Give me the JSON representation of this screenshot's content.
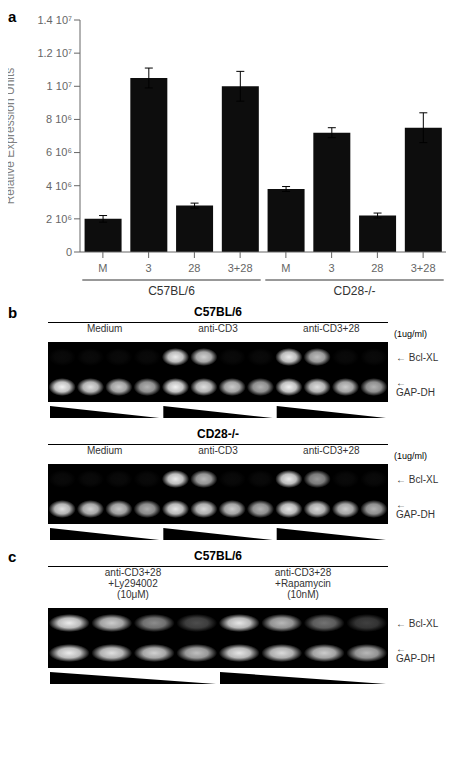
{
  "chart_data": [
    {
      "type": "bar",
      "panel_label": "a",
      "categories": [
        "M",
        "3",
        "28",
        "3+28",
        "M",
        "3",
        "28",
        "3+28"
      ],
      "groups": [
        "C57BL/6",
        "CD28-/-"
      ],
      "values": [
        2000000,
        10500000,
        2800000,
        10000000,
        3800000,
        7200000,
        2200000,
        7500000
      ],
      "errors": [
        200000,
        600000,
        150000,
        900000,
        150000,
        300000,
        150000,
        900000
      ],
      "color": "#0d0d0d",
      "ylabel": "Relative Expression Units",
      "ylim": [
        0,
        14000000
      ],
      "yticks": [
        0,
        {
          "value": 2000000,
          "label": "2 10⁶"
        },
        {
          "value": 4000000,
          "label": "4 10⁶"
        },
        {
          "value": 6000000,
          "label": "6 10⁶"
        },
        {
          "value": 8000000,
          "label": "8 10⁶"
        },
        {
          "value": 10000000,
          "label": "1 10⁷"
        },
        {
          "value": 12000000,
          "label": "1.2 10⁷"
        },
        {
          "value": 14000000,
          "label": "1.4 10⁷"
        }
      ]
    },
    {
      "type": "heatmap",
      "panel_label": "b",
      "title": "C57BL/6",
      "groups": [
        "Medium",
        "anti-CD3",
        "anti-CD3+28"
      ],
      "annotations": [
        "(1ug/ml)"
      ],
      "color_range": [
        0,
        1
      ],
      "series": [
        {
          "name": "← Bcl-XL",
          "values": [
            0.04,
            0.04,
            0.04,
            0.04,
            0.92,
            0.82,
            0.04,
            0.04,
            0.92,
            0.75,
            0.04,
            0.04
          ]
        },
        {
          "name": "← GAP-DH",
          "values": [
            0.95,
            0.88,
            0.8,
            0.7,
            0.95,
            0.88,
            0.8,
            0.7,
            0.95,
            0.88,
            0.8,
            0.7
          ]
        }
      ]
    },
    {
      "type": "heatmap",
      "title": "CD28-/-",
      "groups": [
        "Medium",
        "anti-CD3",
        "anti-CD3+28"
      ],
      "annotations": [
        "(1ug/ml)"
      ],
      "color_range": [
        0,
        1
      ],
      "series": [
        {
          "name": "← Bcl-XL",
          "values": [
            0.04,
            0.04,
            0.04,
            0.04,
            0.92,
            0.72,
            0.04,
            0.04,
            0.92,
            0.6,
            0.04,
            0.04
          ]
        },
        {
          "name": "← GAP-DH",
          "values": [
            0.88,
            0.82,
            0.78,
            0.68,
            0.9,
            0.85,
            0.8,
            0.7,
            0.9,
            0.85,
            0.8,
            0.7
          ]
        }
      ]
    },
    {
      "type": "heatmap",
      "panel_label": "c",
      "title": "C57BL/6",
      "groups": [
        "anti-CD3+28\n+Ly294002\n(10μM)",
        "anti-CD3+28\n+Rapamycin\n(10nM)"
      ],
      "color_range": [
        0,
        1
      ],
      "series": [
        {
          "name": "← Bcl-XL",
          "values": [
            0.92,
            0.8,
            0.55,
            0.3,
            0.9,
            0.72,
            0.45,
            0.25
          ]
        },
        {
          "name": "← GAP-DH",
          "values": [
            0.92,
            0.88,
            0.82,
            0.75,
            0.9,
            0.86,
            0.8,
            0.72
          ]
        }
      ]
    }
  ]
}
